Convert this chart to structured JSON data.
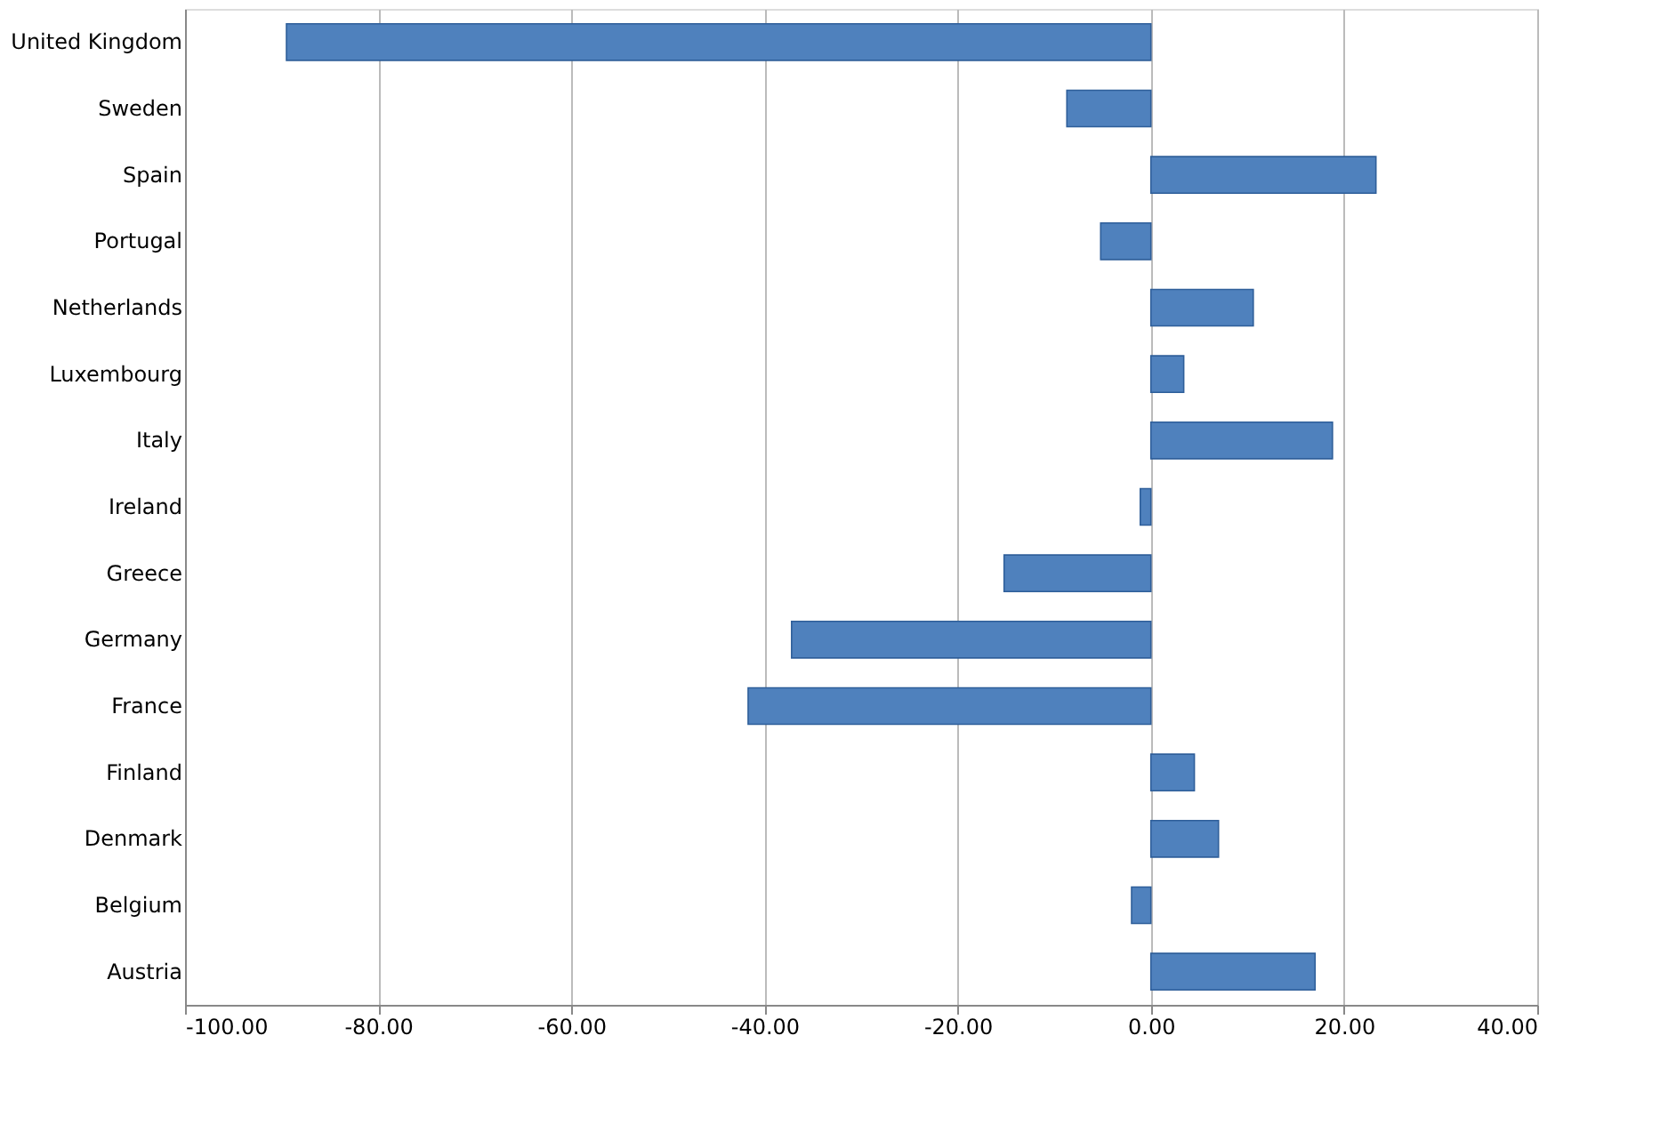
{
  "chart_data": {
    "type": "bar",
    "orientation": "horizontal",
    "categories": [
      "United Kingdom",
      "Sweden",
      "Spain",
      "Portugal",
      "Netherlands",
      "Luxembourg",
      "Italy",
      "Ireland",
      "Greece",
      "Germany",
      "France",
      "Finland",
      "Denmark",
      "Belgium",
      "Austria"
    ],
    "values": [
      -89.5,
      -8.7,
      23.3,
      -5.2,
      10.6,
      3.4,
      18.8,
      -1.1,
      -15.2,
      -37.2,
      -41.7,
      4.5,
      7.0,
      -2.0,
      17.0
    ],
    "color": "#4f81bd",
    "xlim": [
      -100,
      40
    ],
    "xticks": [
      {
        "value": -100,
        "label": "-100.00"
      },
      {
        "value": -80,
        "label": "-80.00"
      },
      {
        "value": -60,
        "label": "-60.00"
      },
      {
        "value": -40,
        "label": "-40.00"
      },
      {
        "value": -20,
        "label": "-20.00"
      },
      {
        "value": 0,
        "label": "0.00"
      },
      {
        "value": 20,
        "label": "20.00"
      },
      {
        "value": 40,
        "label": "40.00"
      }
    ],
    "grid": "x"
  }
}
